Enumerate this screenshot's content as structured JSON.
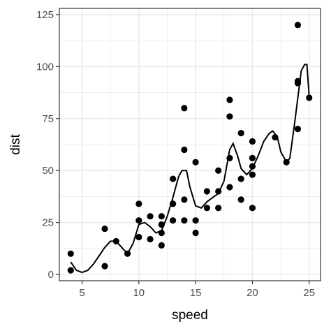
{
  "chart_data": {
    "type": "scatter",
    "title": "",
    "xlabel": "speed",
    "ylabel": "dist",
    "xlim": [
      3.0,
      26.0
    ],
    "ylim": [
      -3,
      128
    ],
    "x_ticks": [
      5,
      10,
      15,
      20,
      25
    ],
    "y_ticks": [
      0,
      25,
      50,
      75,
      100,
      125
    ],
    "x_tick_labels": [
      "5",
      "10",
      "15",
      "20",
      "25"
    ],
    "y_tick_labels": [
      "0",
      "25",
      "50",
      "75",
      "100",
      "125"
    ],
    "grid": true,
    "legend": "none",
    "colors": {
      "points": "#000000",
      "line": "#000000",
      "grid": "#ebebeb",
      "panel_border": "#333333"
    },
    "points": [
      {
        "x": 4,
        "y": 2
      },
      {
        "x": 4,
        "y": 10
      },
      {
        "x": 7,
        "y": 4
      },
      {
        "x": 7,
        "y": 22
      },
      {
        "x": 8,
        "y": 16
      },
      {
        "x": 9,
        "y": 10
      },
      {
        "x": 10,
        "y": 18
      },
      {
        "x": 10,
        "y": 26
      },
      {
        "x": 10,
        "y": 34
      },
      {
        "x": 11,
        "y": 17
      },
      {
        "x": 11,
        "y": 28
      },
      {
        "x": 12,
        "y": 14
      },
      {
        "x": 12,
        "y": 20
      },
      {
        "x": 12,
        "y": 24
      },
      {
        "x": 12,
        "y": 28
      },
      {
        "x": 13,
        "y": 26
      },
      {
        "x": 13,
        "y": 34
      },
      {
        "x": 13,
        "y": 34
      },
      {
        "x": 13,
        "y": 46
      },
      {
        "x": 14,
        "y": 26
      },
      {
        "x": 14,
        "y": 36
      },
      {
        "x": 14,
        "y": 60
      },
      {
        "x": 14,
        "y": 80
      },
      {
        "x": 15,
        "y": 20
      },
      {
        "x": 15,
        "y": 26
      },
      {
        "x": 15,
        "y": 54
      },
      {
        "x": 16,
        "y": 32
      },
      {
        "x": 16,
        "y": 40
      },
      {
        "x": 17,
        "y": 32
      },
      {
        "x": 17,
        "y": 40
      },
      {
        "x": 17,
        "y": 50
      },
      {
        "x": 18,
        "y": 42
      },
      {
        "x": 18,
        "y": 56
      },
      {
        "x": 18,
        "y": 76
      },
      {
        "x": 18,
        "y": 84
      },
      {
        "x": 19,
        "y": 36
      },
      {
        "x": 19,
        "y": 46
      },
      {
        "x": 19,
        "y": 68
      },
      {
        "x": 20,
        "y": 32
      },
      {
        "x": 20,
        "y": 48
      },
      {
        "x": 20,
        "y": 52
      },
      {
        "x": 20,
        "y": 56
      },
      {
        "x": 20,
        "y": 64
      },
      {
        "x": 22,
        "y": 66
      },
      {
        "x": 23,
        "y": 54
      },
      {
        "x": 24,
        "y": 70
      },
      {
        "x": 24,
        "y": 92
      },
      {
        "x": 24,
        "y": 93
      },
      {
        "x": 24,
        "y": 120
      },
      {
        "x": 25,
        "y": 85
      }
    ],
    "smooth_line": [
      {
        "x": 4.0,
        "y": 6
      },
      {
        "x": 4.5,
        "y": 2
      },
      {
        "x": 5.0,
        "y": 1
      },
      {
        "x": 5.5,
        "y": 2
      },
      {
        "x": 6.0,
        "y": 5
      },
      {
        "x": 6.5,
        "y": 9
      },
      {
        "x": 7.0,
        "y": 13
      },
      {
        "x": 7.5,
        "y": 16
      },
      {
        "x": 8.0,
        "y": 16
      },
      {
        "x": 8.5,
        "y": 13
      },
      {
        "x": 9.0,
        "y": 10
      },
      {
        "x": 9.5,
        "y": 15
      },
      {
        "x": 10.0,
        "y": 24
      },
      {
        "x": 10.5,
        "y": 25
      },
      {
        "x": 11.0,
        "y": 23
      },
      {
        "x": 11.5,
        "y": 20
      },
      {
        "x": 12.0,
        "y": 21
      },
      {
        "x": 12.5,
        "y": 28
      },
      {
        "x": 13.0,
        "y": 37
      },
      {
        "x": 13.5,
        "y": 47
      },
      {
        "x": 13.8,
        "y": 50
      },
      {
        "x": 14.2,
        "y": 50
      },
      {
        "x": 14.5,
        "y": 42
      },
      {
        "x": 15.0,
        "y": 33
      },
      {
        "x": 15.5,
        "y": 32
      },
      {
        "x": 16.0,
        "y": 35
      },
      {
        "x": 16.5,
        "y": 37
      },
      {
        "x": 17.0,
        "y": 39
      },
      {
        "x": 17.5,
        "y": 45
      },
      {
        "x": 18.0,
        "y": 60
      },
      {
        "x": 18.3,
        "y": 63
      },
      {
        "x": 18.7,
        "y": 57
      },
      {
        "x": 19.0,
        "y": 51
      },
      {
        "x": 19.5,
        "y": 48
      },
      {
        "x": 20.0,
        "y": 51
      },
      {
        "x": 20.5,
        "y": 57
      },
      {
        "x": 21.0,
        "y": 64
      },
      {
        "x": 21.5,
        "y": 68
      },
      {
        "x": 21.8,
        "y": 69
      },
      {
        "x": 22.2,
        "y": 66
      },
      {
        "x": 22.5,
        "y": 59
      },
      {
        "x": 23.0,
        "y": 54
      },
      {
        "x": 23.3,
        "y": 56
      },
      {
        "x": 23.7,
        "y": 72
      },
      {
        "x": 24.0,
        "y": 85
      },
      {
        "x": 24.3,
        "y": 98
      },
      {
        "x": 24.6,
        "y": 101
      },
      {
        "x": 24.8,
        "y": 101
      },
      {
        "x": 25.0,
        "y": 86
      }
    ]
  }
}
